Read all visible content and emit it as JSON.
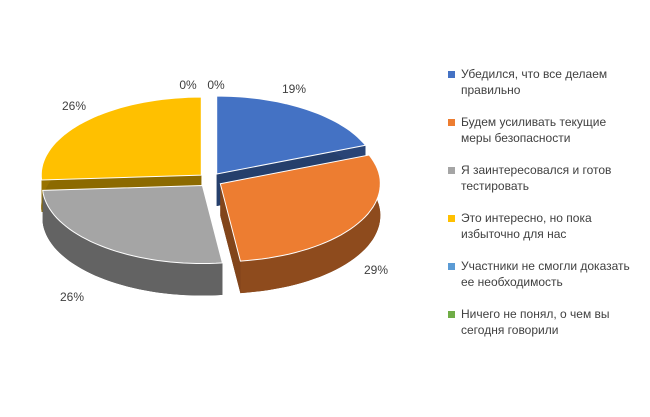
{
  "chart_data": {
    "type": "pie",
    "categories": [
      "Убедился, что все делаем правильно",
      "Будем усиливать текущие меры безопасности",
      "Я заинтересовался и готов тестировать",
      "Это интересно, но пока избыточно для нас",
      "Участники не смогли доказать ее необходимость",
      "Ничего не понял, о чем вы сегодня говорили"
    ],
    "values": [
      19,
      29,
      26,
      26,
      0,
      0
    ],
    "value_labels": [
      "19%",
      "29%",
      "26%",
      "26%",
      "0%",
      "0%"
    ],
    "colors": [
      "#4472c4",
      "#ed7d31",
      "#a5a5a5",
      "#ffc000",
      "#5b9bd5",
      "#70ad47"
    ],
    "legend": "right"
  }
}
